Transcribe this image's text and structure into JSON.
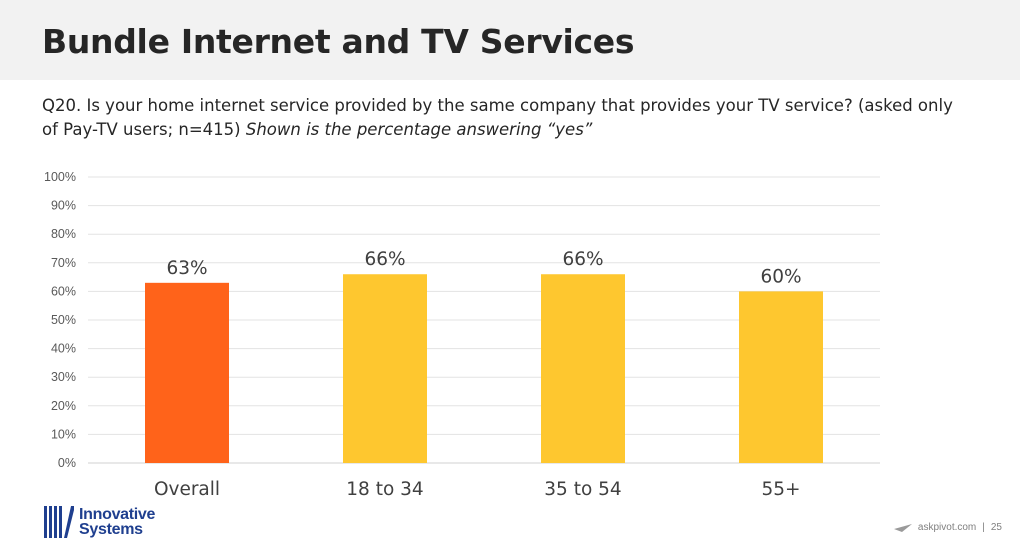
{
  "header": {
    "title": "Bundle Internet and TV Services"
  },
  "question": {
    "text": "Q20. Is your home internet service provided by the same company that provides your TV service? (asked only of Pay-TV users; n=415)",
    "note": "Shown is the percentage answering “yes”"
  },
  "chart_data": {
    "type": "bar",
    "categories": [
      "Overall",
      "18 to 34",
      "35 to 54",
      "55+"
    ],
    "values": [
      63,
      66,
      66,
      60
    ],
    "value_labels": [
      "63%",
      "66%",
      "66%",
      "60%"
    ],
    "colors": [
      "#ff631a",
      "#fec72f",
      "#fec72f",
      "#fec72f"
    ],
    "ylim": [
      0,
      100
    ],
    "yticks": [
      "0%",
      "10%",
      "20%",
      "30%",
      "40%",
      "50%",
      "60%",
      "70%",
      "80%",
      "90%",
      "100%"
    ],
    "grid": true,
    "legend": "none"
  },
  "logo": {
    "line1": "Innovative",
    "line2": "Systems",
    "color": "#1f3f8f"
  },
  "footer": {
    "site": "askpivot.com",
    "separator": "|",
    "page": "25"
  }
}
